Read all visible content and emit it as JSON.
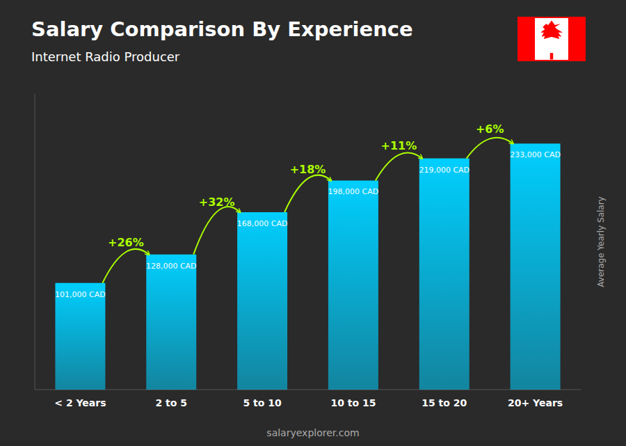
{
  "chart_data": {
    "type": "bar",
    "title": "Salary Comparison By Experience",
    "subtitle": "Internet Radio Producer",
    "ylabel": "Average Yearly Salary",
    "watermark": "salaryexplorer.com",
    "categories": [
      "< 2 Years",
      "2 to 5",
      "5 to 10",
      "10 to 15",
      "15 to 20",
      "20+ Years"
    ],
    "values": [
      101000,
      128000,
      168000,
      198000,
      219000,
      233000
    ],
    "value_labels": [
      "101,000 CAD",
      "128,000 CAD",
      "168,000 CAD",
      "198,000 CAD",
      "219,000 CAD",
      "233,000 CAD"
    ],
    "data_labels": true,
    "annotations": [
      "+26%",
      "+32%",
      "+18%",
      "+11%",
      "+6%"
    ],
    "color": "#00cfff",
    "ylim": [
      0,
      280000
    ],
    "tick_labels": "x",
    "grid": false
  }
}
